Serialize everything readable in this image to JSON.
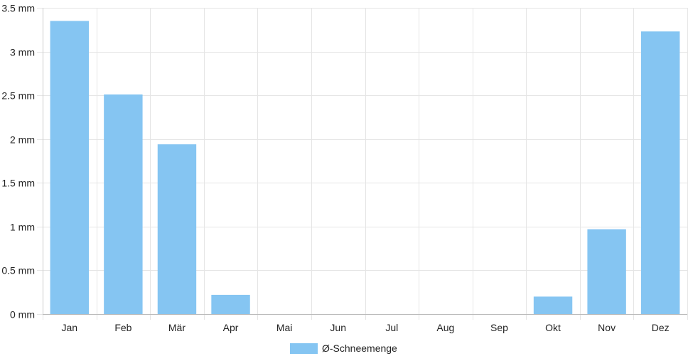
{
  "chart_data": {
    "type": "bar",
    "categories": [
      "Jan",
      "Feb",
      "Mär",
      "Apr",
      "Mai",
      "Jun",
      "Jul",
      "Aug",
      "Sep",
      "Okt",
      "Nov",
      "Dez"
    ],
    "series": [
      {
        "name": "Ø-Schneemenge",
        "values": [
          3.35,
          2.51,
          1.94,
          0.22,
          0,
          0,
          0,
          0,
          0,
          0.2,
          0.97,
          3.23
        ],
        "color": "#85c5f2"
      }
    ],
    "ylim": [
      0,
      3.5
    ],
    "yticks": [
      "0 mm",
      "0.5 mm",
      "1 mm",
      "1.5 mm",
      "2 mm",
      "2.5 mm",
      "3 mm",
      "3.5 mm"
    ],
    "ytick_values": [
      0,
      0.5,
      1,
      1.5,
      2,
      2.5,
      3,
      3.5
    ],
    "grid": true,
    "legend_position": "bottom-center"
  }
}
